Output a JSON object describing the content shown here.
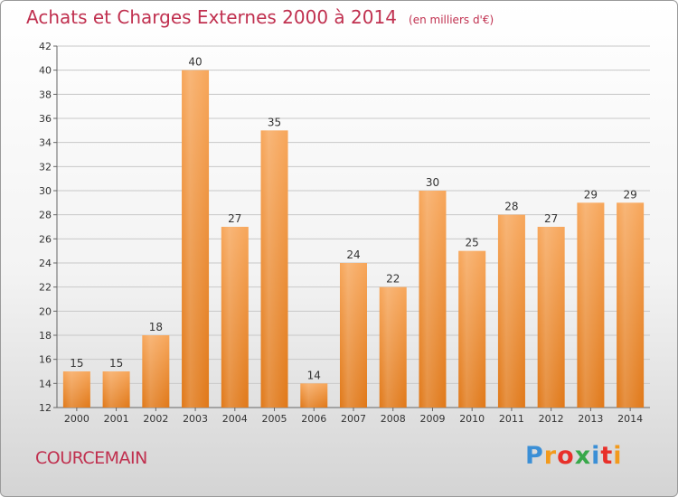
{
  "title": "Achats et Charges Externes 2000 à 2014",
  "subtitle": "(en milliers d'€)",
  "commune": "COURCEMAIN",
  "logo": {
    "letters": [
      "P",
      "r",
      "o",
      "x",
      "i",
      "t",
      "i"
    ],
    "colors": [
      "#3b8fd6",
      "#f29a1c",
      "#e8302a",
      "#38a84a",
      "#3b8fd6",
      "#e8302a",
      "#f29a1c"
    ]
  },
  "colors": {
    "title": "#c0304f",
    "bar_top": "#f7a65a",
    "bar_bottom": "#e07818",
    "grid": "#c8c8c8",
    "text": "#333333"
  },
  "chart_data": {
    "type": "bar",
    "title": "Achats et Charges Externes 2000 à 2014",
    "subtitle": "(en milliers d'€)",
    "categories": [
      "2000",
      "2001",
      "2002",
      "2003",
      "2004",
      "2005",
      "2006",
      "2007",
      "2008",
      "2009",
      "2010",
      "2011",
      "2012",
      "2013",
      "2014"
    ],
    "values": [
      15,
      15,
      18,
      40,
      27,
      35,
      14,
      24,
      22,
      30,
      25,
      28,
      27,
      29,
      29
    ],
    "ylim": [
      12,
      42
    ],
    "yticks": [
      12,
      14,
      16,
      18,
      20,
      22,
      24,
      26,
      28,
      30,
      32,
      34,
      36,
      38,
      40,
      42
    ],
    "grid": true,
    "legend": "none"
  }
}
